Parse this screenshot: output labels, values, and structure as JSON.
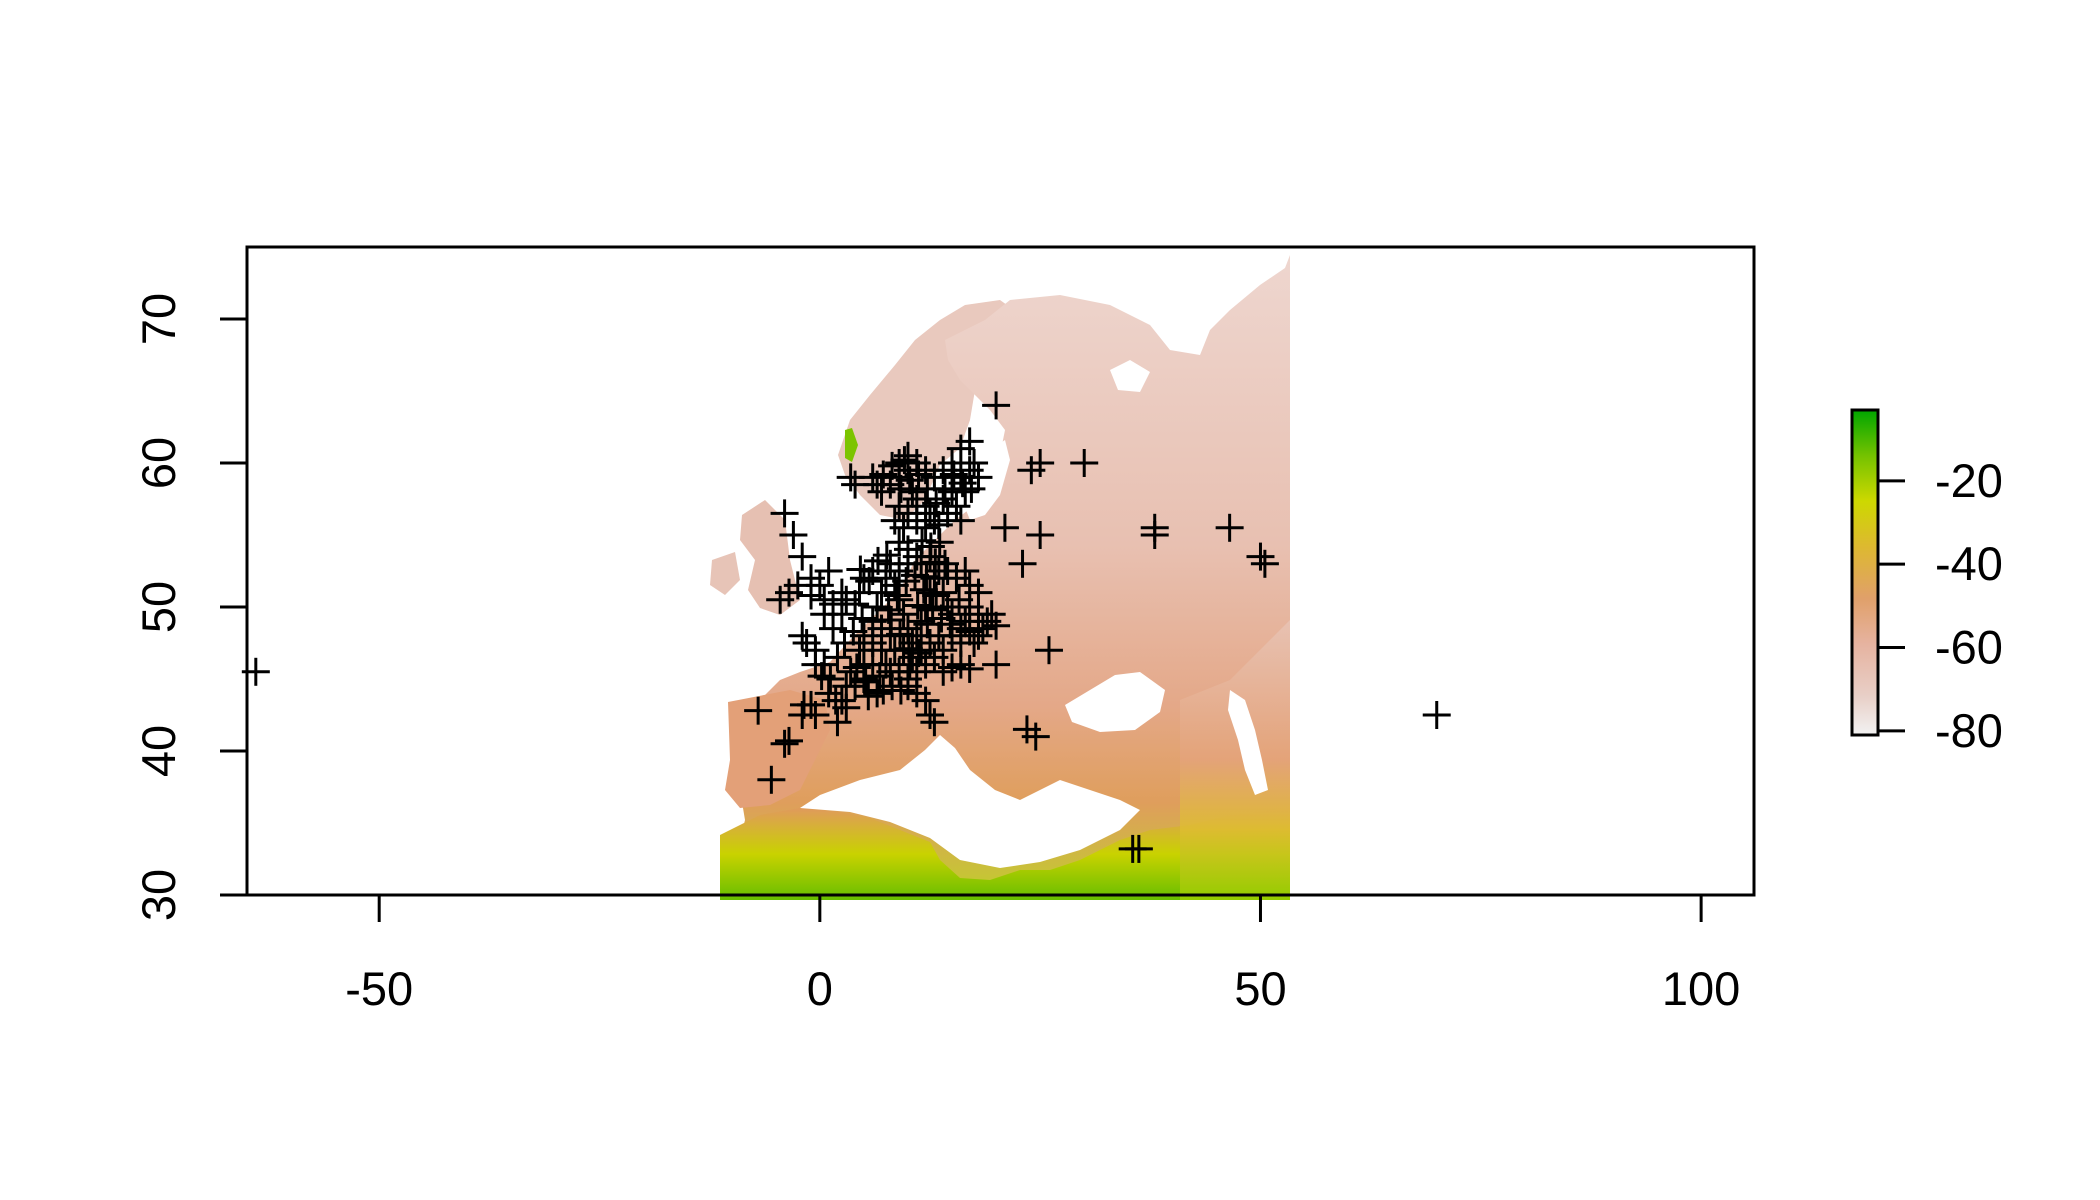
{
  "chart_data": {
    "type": "scatter",
    "title": "",
    "xlabel": "",
    "ylabel": "",
    "xlim": [
      -65,
      106
    ],
    "ylim": [
      30,
      75
    ],
    "x_ticks": [
      -50,
      0,
      50,
      100
    ],
    "x_tick_labels": [
      "-50",
      "0",
      "50",
      "100"
    ],
    "y_ticks": [
      30,
      40,
      50,
      60,
      70
    ],
    "y_tick_labels": [
      "30",
      "40",
      "50",
      "60",
      "70"
    ],
    "raster": {
      "description": "raster map of Europe, North Africa and western Asia",
      "extent_lon": [
        -10,
        55
      ],
      "extent_lat": [
        30,
        75
      ],
      "palette": [
        "#F2F2F2",
        "#E8B9A8",
        "#E59A73",
        "#E0A53E",
        "#D7D400",
        "#8FCC00",
        "#00A600"
      ]
    },
    "legend": {
      "position": "right",
      "values": [
        -80,
        -60,
        -40,
        -20
      ],
      "labels": [
        "-80",
        "-60",
        "-40",
        "-20"
      ],
      "range": [
        -81,
        -3
      ],
      "colors": [
        "#F2F2F2",
        "#E8B9A8",
        "#E59A73",
        "#E0A53E",
        "#D7D400",
        "#8FCC00",
        "#00A600"
      ]
    },
    "marker": "+",
    "points": [
      [
        -64,
        45.5
      ],
      [
        20,
        64
      ],
      [
        30,
        60
      ],
      [
        38,
        55.5
      ],
      [
        38,
        55
      ],
      [
        46.5,
        55.5
      ],
      [
        50,
        53.5
      ],
      [
        50.5,
        53
      ],
      [
        26,
        47
      ],
      [
        20,
        46
      ],
      [
        23.5,
        41.5
      ],
      [
        24.5,
        41
      ],
      [
        25,
        60
      ],
      [
        24,
        59.5
      ],
      [
        25,
        55
      ],
      [
        21,
        55.5
      ],
      [
        23,
        53
      ],
      [
        70,
        42.5
      ],
      [
        35.5,
        33.2
      ],
      [
        36.2,
        33.2
      ],
      [
        -7,
        42.8
      ],
      [
        -4,
        40.5
      ],
      [
        -3.5,
        40.7
      ],
      [
        -5.5,
        38
      ],
      [
        -4,
        56.5
      ],
      [
        -3,
        55
      ],
      [
        -2,
        53.5
      ],
      [
        -1,
        52
      ],
      [
        -2.5,
        51.5
      ],
      [
        -3.5,
        51
      ],
      [
        -4.5,
        50.5
      ],
      [
        0,
        51.5
      ],
      [
        1,
        52.5
      ],
      [
        -1,
        50.8
      ],
      [
        0.5,
        50.5
      ],
      [
        1.5,
        48.5
      ],
      [
        2.5,
        49.5
      ],
      [
        3,
        50.5
      ],
      [
        -2,
        48
      ],
      [
        -1.5,
        47.5
      ],
      [
        -0.5,
        47
      ],
      [
        0.5,
        46
      ],
      [
        2,
        46.5
      ],
      [
        3.5,
        45.5
      ],
      [
        1,
        44
      ],
      [
        2.5,
        43.5
      ],
      [
        3,
        43
      ],
      [
        -1,
        43.2
      ],
      [
        -2,
        42.5
      ],
      [
        2,
        42
      ],
      [
        5,
        45
      ],
      [
        6,
        46
      ],
      [
        6.5,
        44
      ],
      [
        5.5,
        43.8
      ],
      [
        4.5,
        47
      ],
      [
        5,
        48
      ],
      [
        6,
        49
      ],
      [
        6.5,
        50
      ],
      [
        7,
        51
      ],
      [
        7.5,
        52
      ],
      [
        8,
        53
      ],
      [
        6,
        52.5
      ],
      [
        5,
        52
      ],
      [
        4.5,
        51
      ],
      [
        4,
        50.2
      ],
      [
        8.5,
        51.5
      ],
      [
        9,
        50.5
      ],
      [
        9.5,
        49.5
      ],
      [
        10,
        48.5
      ],
      [
        10.5,
        47.5
      ],
      [
        11,
        48
      ],
      [
        11.5,
        49
      ],
      [
        12,
        50
      ],
      [
        12.5,
        51
      ],
      [
        13,
        52
      ],
      [
        13.5,
        52.5
      ],
      [
        14,
        51
      ],
      [
        14.5,
        50
      ],
      [
        15,
        49.5
      ],
      [
        16,
        48.5
      ],
      [
        16.5,
        49
      ],
      [
        17,
        50
      ],
      [
        18,
        49.5
      ],
      [
        18.5,
        48.5
      ],
      [
        17.5,
        47.5
      ],
      [
        16,
        47.5
      ],
      [
        14,
        47
      ],
      [
        13,
        46.5
      ],
      [
        12,
        46
      ],
      [
        11,
        45.5
      ],
      [
        10,
        45
      ],
      [
        9,
        45.5
      ],
      [
        8,
        45.5
      ],
      [
        7.5,
        46
      ],
      [
        8.5,
        47
      ],
      [
        9.5,
        47
      ],
      [
        8,
        48
      ],
      [
        7,
        48.5
      ],
      [
        9,
        52.5
      ],
      [
        10,
        53
      ],
      [
        11,
        53.5
      ],
      [
        10,
        54
      ],
      [
        9,
        54.5
      ],
      [
        11.5,
        53
      ],
      [
        12.5,
        53.5
      ],
      [
        14.5,
        52.5
      ],
      [
        15.5,
        52
      ],
      [
        16.5,
        52.5
      ],
      [
        17,
        51.5
      ],
      [
        18,
        51
      ],
      [
        10.5,
        46.5
      ],
      [
        11.5,
        47
      ],
      [
        12.5,
        47.5
      ],
      [
        13.5,
        48
      ],
      [
        7,
        47
      ],
      [
        6,
        47.5
      ],
      [
        5,
        46
      ],
      [
        4,
        44.5
      ],
      [
        3,
        44.5
      ],
      [
        10,
        44.5
      ],
      [
        11,
        44
      ],
      [
        12,
        43.5
      ],
      [
        12.5,
        42.5
      ],
      [
        13,
        42
      ],
      [
        14,
        45.5
      ],
      [
        15,
        45.8
      ],
      [
        16,
        46
      ],
      [
        17,
        45.7
      ],
      [
        18,
        48
      ],
      [
        19,
        49
      ],
      [
        19.5,
        49.5
      ],
      [
        20,
        48.7
      ],
      [
        17,
        48.3
      ],
      [
        15,
        48
      ],
      [
        6,
        59
      ],
      [
        6.5,
        58.5
      ],
      [
        7,
        58
      ],
      [
        8,
        58.5
      ],
      [
        9,
        59
      ],
      [
        10,
        59.5
      ],
      [
        10.5,
        58
      ],
      [
        11,
        57.5
      ],
      [
        12,
        57
      ],
      [
        12.5,
        56.5
      ],
      [
        13,
        56
      ],
      [
        13.5,
        55.7
      ],
      [
        12,
        55.5
      ],
      [
        11,
        56
      ],
      [
        10,
        56.5
      ],
      [
        9,
        57
      ],
      [
        8.5,
        56
      ],
      [
        9.5,
        55.5
      ],
      [
        14,
        57.5
      ],
      [
        15,
        58
      ],
      [
        16,
        59
      ],
      [
        17,
        59.5
      ],
      [
        17.5,
        60
      ],
      [
        18,
        59
      ],
      [
        16.5,
        58
      ],
      [
        15.5,
        57
      ],
      [
        14.5,
        56.5
      ],
      [
        16,
        56
      ],
      [
        15,
        60
      ],
      [
        14,
        59.5
      ],
      [
        13,
        59
      ],
      [
        12,
        59.5
      ],
      [
        11,
        60
      ],
      [
        10,
        60.5
      ],
      [
        9,
        60
      ],
      [
        16,
        61
      ],
      [
        17,
        61.5
      ],
      [
        3.5,
        59
      ],
      [
        4,
        58.5
      ],
      [
        2.5,
        51
      ],
      [
        1.5,
        50.2
      ],
      [
        0.5,
        49.5
      ],
      [
        -0.5,
        46
      ],
      [
        0.2,
        45.2
      ],
      [
        1.2,
        45
      ],
      [
        1.8,
        43.5
      ],
      [
        -0.5,
        42.5
      ],
      [
        -1.8,
        43.2
      ],
      [
        2.8,
        47.5
      ],
      [
        3.8,
        48.3
      ],
      [
        4.8,
        49.2
      ],
      [
        7.8,
        49.8
      ],
      [
        8.8,
        50.8
      ],
      [
        9.8,
        51.8
      ],
      [
        10.8,
        52.2
      ],
      [
        11.8,
        51.2
      ],
      [
        12.8,
        49.8
      ],
      [
        13.8,
        49.2
      ],
      [
        14.8,
        48.8
      ],
      [
        15.8,
        50.5
      ],
      [
        5.2,
        44.8
      ],
      [
        4.2,
        45.8
      ],
      [
        6.8,
        45.2
      ],
      [
        7.2,
        44.2
      ],
      [
        8.2,
        44.5
      ],
      [
        9.2,
        44.2
      ],
      [
        10.2,
        46
      ],
      [
        11.2,
        46.8
      ],
      [
        12.2,
        48.8
      ],
      [
        13.2,
        50.8
      ],
      [
        14.2,
        53
      ],
      [
        12.6,
        54.2
      ],
      [
        11.6,
        54.6
      ],
      [
        13.6,
        54.5
      ],
      [
        7.6,
        53.6
      ],
      [
        6.6,
        53.2
      ],
      [
        5.6,
        51.8
      ],
      [
        4.6,
        52.6
      ],
      [
        8.1,
        49.1
      ],
      [
        9.1,
        48.1
      ],
      [
        10.1,
        47.1
      ],
      [
        11.1,
        50.1
      ],
      [
        12.1,
        52.1
      ],
      [
        13.1,
        53.1
      ],
      [
        16.2,
        58.6
      ],
      [
        17.2,
        58.2
      ],
      [
        15.2,
        59.2
      ],
      [
        14.2,
        58.2
      ],
      [
        13.2,
        57.2
      ],
      [
        12.2,
        58.2
      ],
      [
        11.2,
        59.2
      ],
      [
        10.2,
        58.8
      ],
      [
        9.2,
        58.2
      ],
      [
        7.2,
        59.2
      ],
      [
        8.2,
        59.8
      ],
      [
        9.6,
        60.2
      ]
    ]
  }
}
